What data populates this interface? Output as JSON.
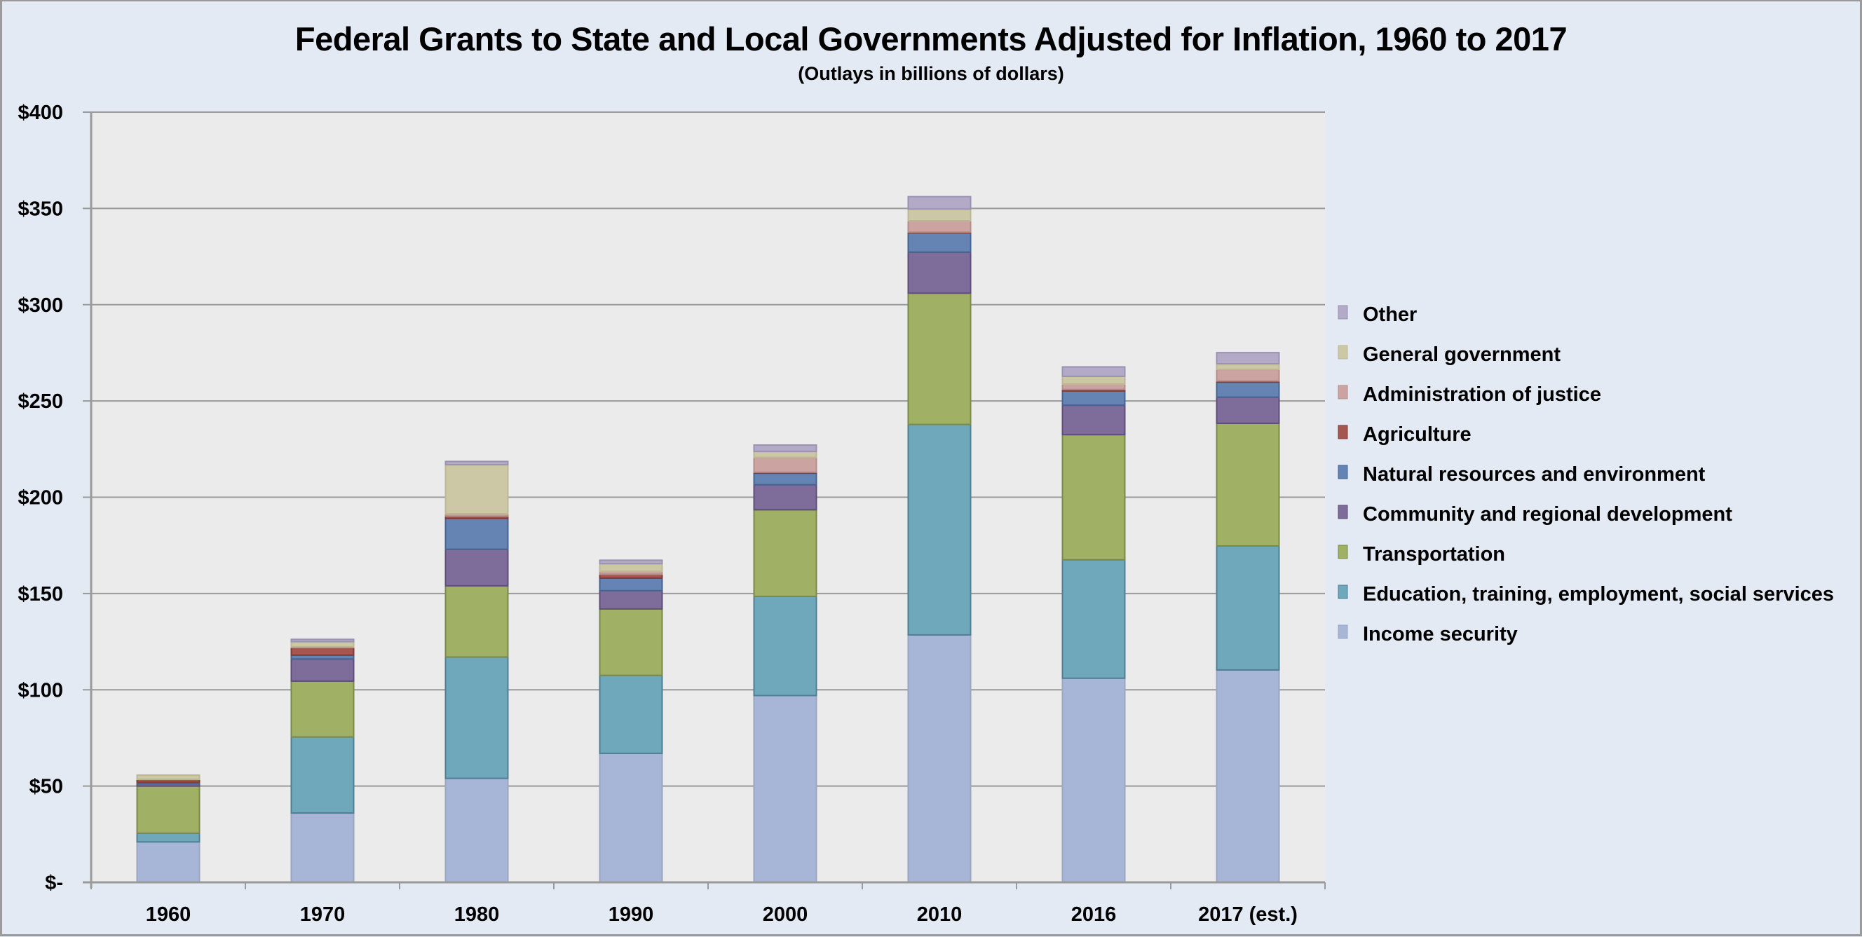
{
  "chart_data": {
    "type": "bar",
    "stacked": true,
    "title": "Federal Grants to State and Local Governments Adjusted for Inflation, 1960 to 2017",
    "subtitle": "(Outlays in billions of dollars)",
    "xlabel": "",
    "ylabel": "",
    "ylim": [
      0,
      400
    ],
    "yticks": [
      0,
      50,
      100,
      150,
      200,
      250,
      300,
      350,
      400
    ],
    "ytick_labels": [
      "$-",
      "$50",
      "$100",
      "$150",
      "$200",
      "$250",
      "$300",
      "$350",
      "$400"
    ],
    "grid": true,
    "legend_position": "right",
    "categories": [
      "1960",
      "1970",
      "1980",
      "1990",
      "2000",
      "2010",
      "2016",
      "2017 (est.)"
    ],
    "series": [
      {
        "name": "Income security",
        "color": "#a7b6d6",
        "edge": "#9aa6c2",
        "values": [
          21,
          36,
          54,
          67,
          97,
          128.5,
          106,
          110.3
        ]
      },
      {
        "name": "Education, training, employment, social services",
        "color": "#6fa7bb",
        "edge": "#4f7f93",
        "values": [
          4.5,
          39.5,
          63,
          40.5,
          51.5,
          109.3,
          61.5,
          64.4
        ]
      },
      {
        "name": "Transportation",
        "color": "#a0b064",
        "edge": "#7b8a48",
        "values": [
          24.5,
          29,
          37,
          34.5,
          45,
          68.2,
          65,
          63.7
        ]
      },
      {
        "name": "Community and regional development",
        "color": "#7e6c9a",
        "edge": "#5e4e78",
        "values": [
          1.2,
          11.5,
          19,
          9.5,
          13,
          21.3,
          15.3,
          13.6
        ]
      },
      {
        "name": "Natural resources and environment",
        "color": "#6584b3",
        "edge": "#466491",
        "values": [
          0.8,
          2,
          16,
          6.5,
          6,
          10,
          7.4,
          7.8
        ]
      },
      {
        "name": "Agriculture",
        "color": "#a4564f",
        "edge": "#843a36",
        "values": [
          1.5,
          4,
          1.2,
          2,
          0.5,
          0.4,
          0.8,
          0.6
        ]
      },
      {
        "name": "Administration of justice",
        "color": "#cba3a1",
        "edge": "#b58e8c",
        "values": [
          0,
          0.3,
          1.2,
          1.5,
          7.7,
          5.9,
          2.8,
          6.0
        ]
      },
      {
        "name": "General government",
        "color": "#ccc8a6",
        "edge": "#bcb894",
        "values": [
          2.2,
          2.7,
          25.5,
          4,
          3.1,
          6.1,
          4,
          2.9
        ]
      },
      {
        "name": "Other",
        "color": "#b3aac8",
        "edge": "#9a92b2",
        "values": [
          0,
          1.2,
          1.7,
          1.8,
          3.3,
          6.4,
          4.9,
          5.8
        ]
      }
    ],
    "legend_order": [
      "Other",
      "General government",
      "Administration of justice",
      "Agriculture",
      "Natural resources and environment",
      "Community and regional development",
      "Transportation",
      "Education, training, employment, social services",
      "Income security"
    ]
  },
  "style": {
    "plot_background": "#ebebeb",
    "page_background": "#e3eaf4",
    "gridline_color": "#9a9a9a"
  }
}
